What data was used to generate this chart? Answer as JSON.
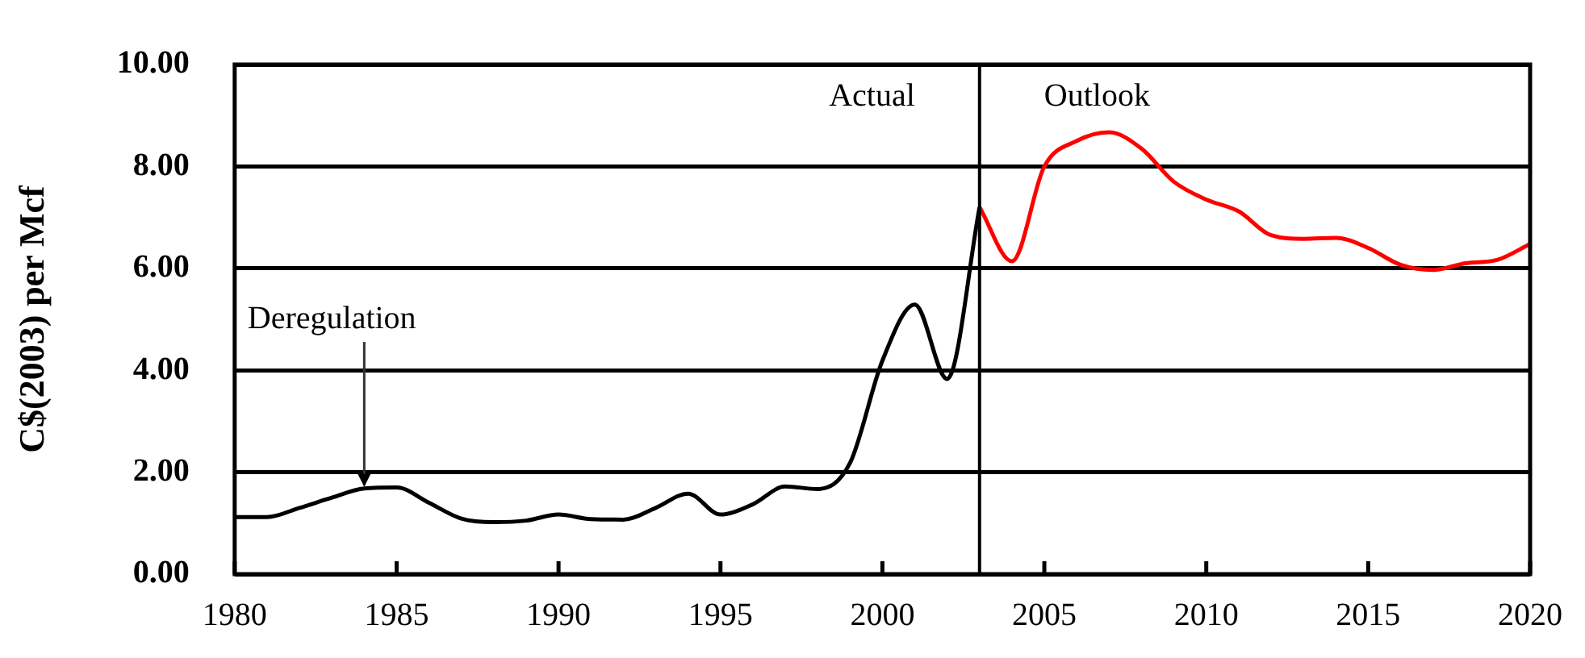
{
  "chart_data": {
    "type": "line",
    "ylabel": "C$(2003) per Mcf",
    "xlim": [
      1980,
      2020
    ],
    "xticks": [
      1980,
      1985,
      1990,
      1995,
      2000,
      2005,
      2010,
      2015,
      2020
    ],
    "ylim": [
      0,
      10
    ],
    "yticks": [
      {
        "value": 0,
        "label": "0.00"
      },
      {
        "value": 2,
        "label": "2.00"
      },
      {
        "value": 4,
        "label": "4.00"
      },
      {
        "value": 6,
        "label": "6.00"
      },
      {
        "value": 8,
        "label": "8.00"
      },
      {
        "value": 10,
        "label": "10.00"
      }
    ],
    "grid": "y",
    "legend": false,
    "marker": "none",
    "line_style": "solid",
    "series": [
      {
        "color": "#000000",
        "x": [
          1980,
          1981,
          1982,
          1983,
          1984,
          1985,
          1986,
          1987,
          1988,
          1989,
          1990,
          1991,
          1992,
          1993,
          1994,
          1995,
          1996,
          1997,
          1998,
          1999,
          2000,
          2001,
          2002,
          2003
        ],
        "values": [
          1.12,
          1.12,
          1.3,
          1.5,
          1.68,
          1.7,
          1.4,
          1.09,
          1.02,
          1.05,
          1.17,
          1.08,
          1.07,
          1.3,
          1.58,
          1.17,
          1.37,
          1.72,
          1.67,
          2.18,
          4.19,
          5.29,
          3.83,
          7.2
        ]
      },
      {
        "color": "#ff0000",
        "x": [
          2003,
          2004,
          2005,
          2006,
          2007,
          2008,
          2009,
          2010,
          2011,
          2012,
          2013,
          2014,
          2015,
          2016,
          2017,
          2018,
          2019,
          2020
        ],
        "values": [
          7.2,
          6.14,
          8.0,
          8.5,
          8.67,
          8.35,
          7.7,
          7.35,
          7.12,
          6.65,
          6.58,
          6.6,
          6.4,
          6.07,
          5.97,
          6.1,
          6.17,
          6.48
        ]
      }
    ],
    "ref_lines": [
      {
        "axis": "x",
        "value": 2003,
        "color": "#000000"
      }
    ],
    "annotations": [
      {
        "text": "Deregulation",
        "x": 1984,
        "y": 1.68
      },
      "Actual",
      "Outlook"
    ]
  }
}
